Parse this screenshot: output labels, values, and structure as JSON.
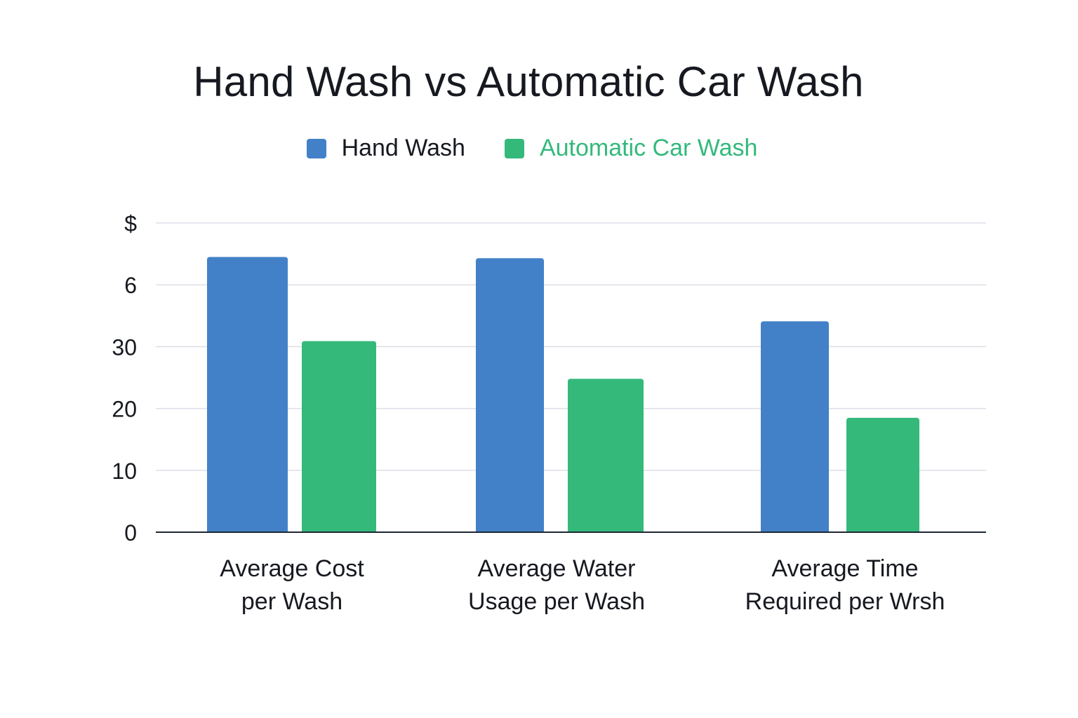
{
  "colors": {
    "hand": "#4281C8",
    "auto": "#34B97B",
    "grid": "#DCDFE8",
    "axis": "#1F2733",
    "text": "#16191F"
  },
  "chart_data": {
    "type": "bar",
    "title": "Hand Wash vs Automatic Car Wash",
    "legend_position": "top-center",
    "categories": [
      [
        "Average Cost",
        "per Wash"
      ],
      [
        "Average Water",
        "Usage per Wash"
      ],
      [
        "Average Time",
        "Required per Wrsh"
      ]
    ],
    "y_tick_labels": [
      "0",
      "10",
      "20",
      "30",
      "6",
      "$"
    ],
    "series": [
      {
        "name": "Hand Wash",
        "values": [
          44.5,
          44.3,
          34.1
        ]
      },
      {
        "name": "Automatic Car Wash",
        "values": [
          30.9,
          24.8,
          18.5
        ]
      }
    ],
    "ylim": [
      0,
      50
    ],
    "grid": true,
    "xlabel": "",
    "ylabel": ""
  }
}
